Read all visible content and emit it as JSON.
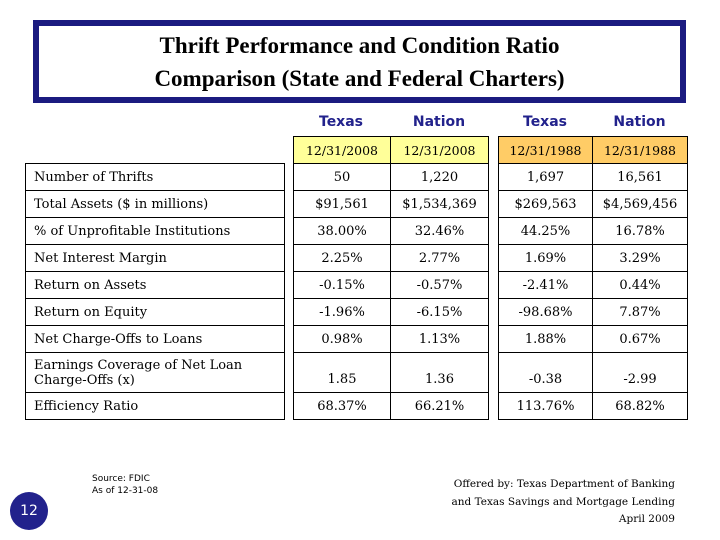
{
  "slide": {
    "title_line1": "Thrift Performance and Condition Ratio",
    "title_line2": "Comparison (State and Federal Charters)",
    "page_number": "12",
    "source_line1": "Source: FDIC",
    "source_line2": "As of 12-31-08",
    "credit_line1": "Offered by: Texas Department of Banking",
    "credit_line2": "and Texas Savings and Mortgage Lending",
    "credit_line3": "April 2009"
  },
  "colors": {
    "navy": "#1b1b80",
    "header_text_navy": "#22228c",
    "date_2008_bg": "#ffff99",
    "date_1988_bg": "#ffcc66",
    "table_border": "#000000"
  },
  "table": {
    "column_headers": [
      "Texas",
      "Nation",
      "Texas",
      "Nation"
    ],
    "date_row": [
      "12/31/2008",
      "12/31/2008",
      "12/31/1988",
      "12/31/1988"
    ],
    "rows": [
      {
        "label": "Number of Thrifts",
        "values": [
          "50",
          "1,220",
          "1,697",
          "16,561"
        ]
      },
      {
        "label": "Total Assets ($ in millions)",
        "values": [
          "$91,561",
          "$1,534,369",
          "$269,563",
          "$4,569,456"
        ]
      },
      {
        "label": "% of Unprofitable Institutions",
        "values": [
          "38.00%",
          "32.46%",
          "44.25%",
          "16.78%"
        ]
      },
      {
        "label": "Net Interest Margin",
        "values": [
          "2.25%",
          "2.77%",
          "1.69%",
          "3.29%"
        ]
      },
      {
        "label": "Return on Assets",
        "values": [
          "-0.15%",
          "-0.57%",
          "-2.41%",
          "0.44%"
        ]
      },
      {
        "label": "Return on Equity",
        "values": [
          "-1.96%",
          "-6.15%",
          "-98.68%",
          "7.87%"
        ]
      },
      {
        "label": "Net Charge-Offs to Loans",
        "values": [
          "0.98%",
          "1.13%",
          "1.88%",
          "0.67%"
        ]
      },
      {
        "label": "Earnings Coverage of Net Loan Charge-Offs (x)",
        "values": [
          "1.85",
          "1.36",
          "-0.38",
          "-2.99"
        ]
      },
      {
        "label": "Efficiency Ratio",
        "values": [
          "68.37%",
          "66.21%",
          "113.76%",
          "68.82%"
        ]
      }
    ]
  },
  "chart_data": {
    "type": "table",
    "title": "Thrift Performance and Condition Ratio Comparison (State and Federal Charters)",
    "columns": [
      {
        "region": "Texas",
        "as_of": "12/31/2008"
      },
      {
        "region": "Nation",
        "as_of": "12/31/2008"
      },
      {
        "region": "Texas",
        "as_of": "12/31/1988"
      },
      {
        "region": "Nation",
        "as_of": "12/31/1988"
      }
    ],
    "row_labels": [
      "Number of Thrifts",
      "Total Assets ($ in millions)",
      "% of Unprofitable Institutions",
      "Net Interest Margin",
      "Return on Assets",
      "Return on Equity",
      "Net Charge-Offs to Loans",
      "Earnings Coverage of Net Loan Charge-Offs (x)",
      "Efficiency Ratio"
    ],
    "series": [
      {
        "name": "Texas 12/31/2008",
        "values": [
          50,
          91561,
          38.0,
          2.25,
          -0.15,
          -1.96,
          0.98,
          1.85,
          68.37
        ]
      },
      {
        "name": "Nation 12/31/2008",
        "values": [
          1220,
          1534369,
          32.46,
          2.77,
          -0.57,
          -6.15,
          1.13,
          1.36,
          66.21
        ]
      },
      {
        "name": "Texas 12/31/1988",
        "values": [
          1697,
          269563,
          44.25,
          1.69,
          -2.41,
          -98.68,
          1.88,
          -0.38,
          113.76
        ]
      },
      {
        "name": "Nation 12/31/1988",
        "values": [
          16561,
          4569456,
          16.78,
          3.29,
          0.44,
          7.87,
          0.67,
          -2.99,
          68.82
        ]
      }
    ],
    "source": "Source: FDIC, As of 12-31-08"
  }
}
